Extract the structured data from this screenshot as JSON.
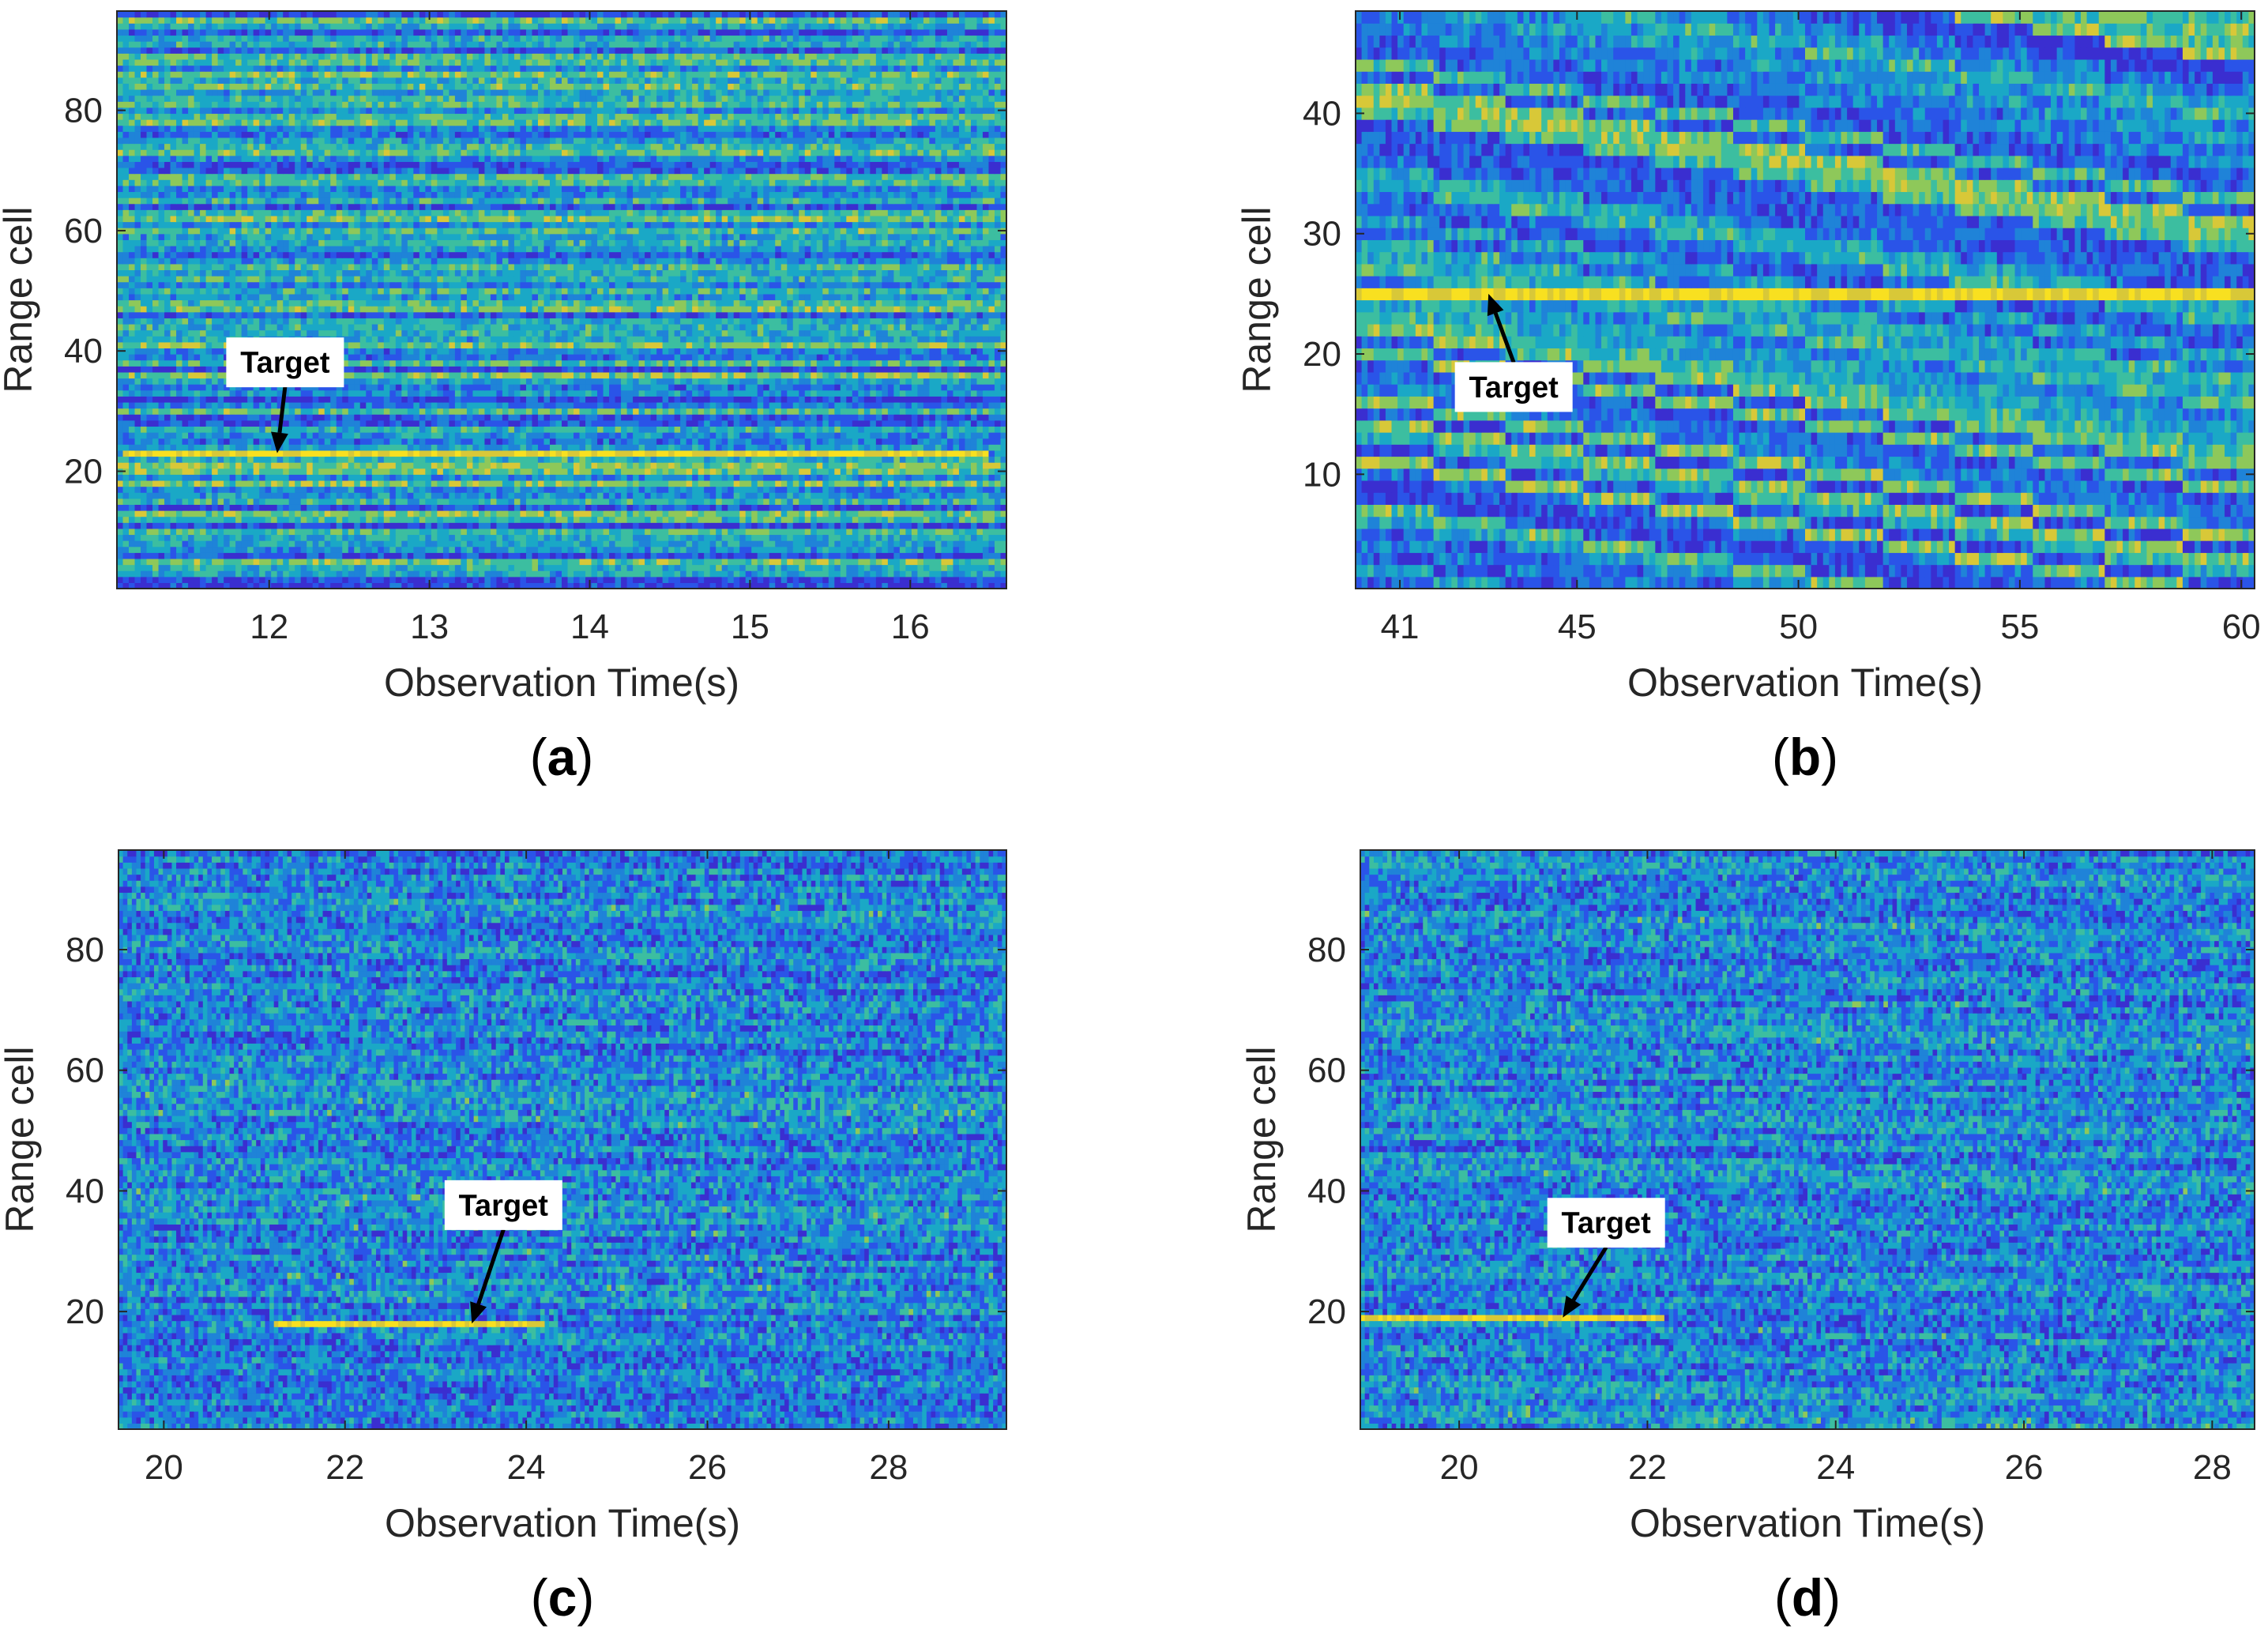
{
  "colormap": [
    "#3a2ed0",
    "#2a54e8",
    "#1f83d8",
    "#1aa8c6",
    "#3cbea0",
    "#8ec85a",
    "#d8c838",
    "#f8e020"
  ],
  "chart_data": [
    {
      "type": "heatmap",
      "panel_label": "(a)",
      "xlabel": "Observation Time(s)",
      "ylabel": "Range cell",
      "xlim": [
        11.05,
        16.6
      ],
      "ylim": [
        0.5,
        96.5
      ],
      "xticks": [
        12,
        13,
        14,
        15,
        16
      ],
      "xtick_labels": [
        "12",
        "13",
        "14",
        "15",
        "16"
      ],
      "yticks": [
        20,
        40,
        60,
        80
      ],
      "ytick_labels": [
        "20",
        "40",
        "60",
        "80"
      ],
      "annotation": {
        "text": "Target",
        "arrow_to": [
          12.05,
          23
        ]
      },
      "pattern": {
        "style": "strong_bands",
        "drift": 0.0,
        "target_cell": 23,
        "target_range": [
          11.1,
          16.5
        ]
      }
    },
    {
      "type": "heatmap",
      "panel_label": "(b)",
      "xlabel": "Observation Time(s)",
      "ylabel": "Range cell",
      "xlim": [
        40.0,
        60.3
      ],
      "ylim": [
        0.5,
        48.5
      ],
      "xticks": [
        41,
        45,
        50,
        55,
        60
      ],
      "xtick_labels": [
        "41",
        "45",
        "50",
        "55",
        "60"
      ],
      "yticks": [
        10,
        20,
        30,
        40
      ],
      "ytick_labels": [
        "10",
        "20",
        "30",
        "40"
      ],
      "annotation": {
        "text": "Target",
        "arrow_to": [
          43.0,
          25
        ]
      },
      "pattern": {
        "style": "diagonal_bands",
        "drift": -0.6,
        "target_cell": 25,
        "target_range": [
          40.0,
          60.3
        ]
      }
    },
    {
      "type": "heatmap",
      "panel_label": "(c)",
      "xlabel": "Observation Time(s)",
      "ylabel": "Range cell",
      "xlim": [
        19.5,
        29.3
      ],
      "ylim": [
        0.5,
        96.5
      ],
      "xticks": [
        20,
        22,
        24,
        26,
        28
      ],
      "xtick_labels": [
        "20",
        "22",
        "24",
        "26",
        "28"
      ],
      "yticks": [
        20,
        40,
        60,
        80
      ],
      "ytick_labels": [
        "20",
        "40",
        "60",
        "80"
      ],
      "annotation": {
        "text": "Target",
        "arrow_to": [
          23.4,
          18
        ]
      },
      "pattern": {
        "style": "noisy",
        "drift": -1.0,
        "target_cell": 18,
        "target_range": [
          21.2,
          24.2
        ]
      }
    },
    {
      "type": "heatmap",
      "panel_label": "(d)",
      "xlabel": "Observation Time(s)",
      "ylabel": "Range cell",
      "xlim": [
        18.95,
        28.45
      ],
      "ylim": [
        0.5,
        96.5
      ],
      "xticks": [
        20,
        22,
        24,
        26,
        28
      ],
      "xtick_labels": [
        "20",
        "22",
        "24",
        "26",
        "28"
      ],
      "yticks": [
        20,
        40,
        60,
        80
      ],
      "ytick_labels": [
        "20",
        "40",
        "60",
        "80"
      ],
      "annotation": {
        "text": "Target",
        "arrow_to": [
          21.1,
          19
        ]
      },
      "pattern": {
        "style": "noisy",
        "drift": -0.8,
        "target_cell": 19,
        "target_range": [
          18.95,
          22.2
        ]
      }
    }
  ]
}
